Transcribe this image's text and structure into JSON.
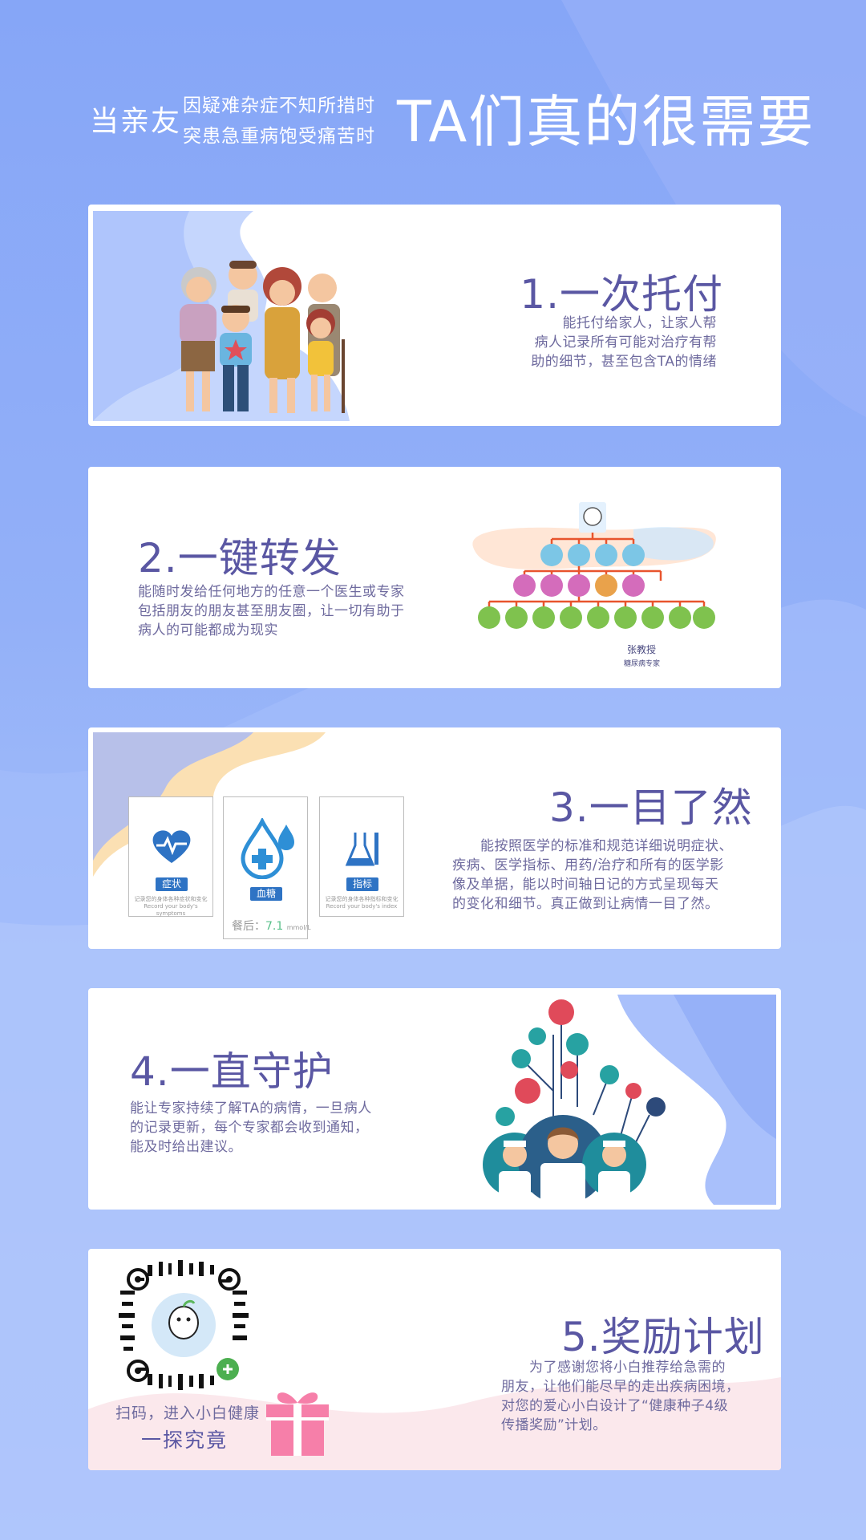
{
  "header": {
    "prefix": "当亲友",
    "line1": "因疑难杂症不知所措时",
    "line2": "突患急重病饱受痛苦时",
    "big": "TA们真的很需要"
  },
  "sections": [
    {
      "title": "1.一次托付",
      "desc": [
        "能托付给家人，让家人帮",
        "病人记录所有可能对治疗有帮",
        "助的细节，甚至包含TA的情绪"
      ]
    },
    {
      "title": "2.一键转发",
      "desc": [
        "能随时发给任何地方的任意一个医生或专家",
        "包括朋友的朋友甚至朋友圈，让一切有助于",
        "病人的可能都成为现实"
      ],
      "expert_name": "张教授",
      "expert_title": "糖尿病专家"
    },
    {
      "title": "3.一目了然",
      "desc": [
        "　　能按照医学的标准和规范详细说明症状、",
        "疾病、医学指标、用药/治疗和所有的医学影",
        "像及单据，能以时间轴日记的方式呈现每天",
        "的变化和细节。真正做到让病情一目了然。"
      ],
      "cards": [
        {
          "tag": "症状",
          "caption": "记录您的身体各种症状和变化",
          "sub": "Record your body's symptoms"
        },
        {
          "tag": "血糖",
          "caption": "",
          "sub": ""
        },
        {
          "tag": "指标",
          "caption": "记录您的身体各种指标和变化",
          "sub": "Record your body's index"
        }
      ],
      "glucose": {
        "label": "餐后：",
        "value": "7.1",
        "unit": "mmol/L"
      }
    },
    {
      "title": "4.一直守护",
      "desc": [
        "能让专家持续了解TA的病情，一旦病人",
        "的记录更新，每个专家都会收到通知，",
        "能及时给出建议。"
      ]
    },
    {
      "title": "5.奖励计划",
      "desc": [
        "　　为了感谢您将小白推荐给急需的",
        "朋友，让他们能尽早的走出疾病困境，",
        "对您的爱心小白设计了“健康种子4级",
        "传播奖励”计划。"
      ],
      "qr_caption": "扫码，进入小白健康",
      "qr_caption2": "一探究竟"
    }
  ],
  "colors": {
    "accent": "#5a57a3",
    "body_text": "#6e6a9e",
    "background": "#8fabf7",
    "gift": "#f67fa9",
    "tree_line": "#e8542d",
    "tag_blue": "#2e73c4"
  }
}
